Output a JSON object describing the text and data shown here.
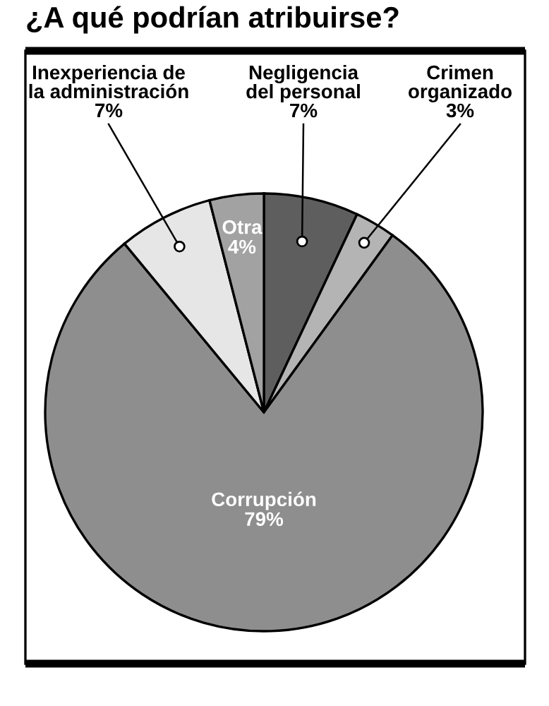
{
  "chart_data": {
    "type": "pie",
    "title": "¿A qué podrían atribuirse?",
    "categories": [
      "Negligencia del personal",
      "Crimen organizado",
      "Corrupción",
      "Inexperiencia de la administración",
      "Otra"
    ],
    "values": [
      7,
      3,
      79,
      7,
      4
    ],
    "value_labels": [
      "7%",
      "3%",
      "79%",
      "7%",
      "4%"
    ],
    "colors": [
      "#5e5e5e",
      "#b4b4b4",
      "#8e8e8e",
      "#e6e6e6",
      "#a2a2a2"
    ]
  }
}
